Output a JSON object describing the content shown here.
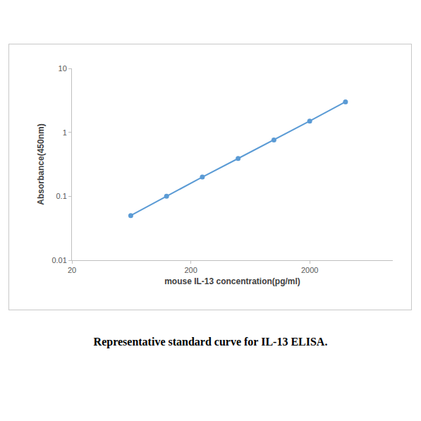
{
  "chart_data": {
    "type": "line",
    "title": "Representative standard curve for IL-13 ELISA.",
    "x_label": "mouse IL-13 concentration(pg/ml)",
    "y_label": "Absorbance(450nm)",
    "x": [
      62.5,
      125,
      250,
      500,
      1000,
      2000,
      4000
    ],
    "values": [
      0.05,
      0.1,
      0.2,
      0.39,
      0.76,
      1.5,
      3.0
    ],
    "color": "#5b9bd5",
    "marker": "circle",
    "line_style": "solid",
    "log": true,
    "grid": false,
    "xlim": [
      20,
      10000
    ],
    "xticks": [
      20,
      200,
      2000
    ],
    "ylim": [
      0.01,
      10
    ],
    "yticks": [
      0.01,
      0.1,
      1,
      10
    ]
  }
}
